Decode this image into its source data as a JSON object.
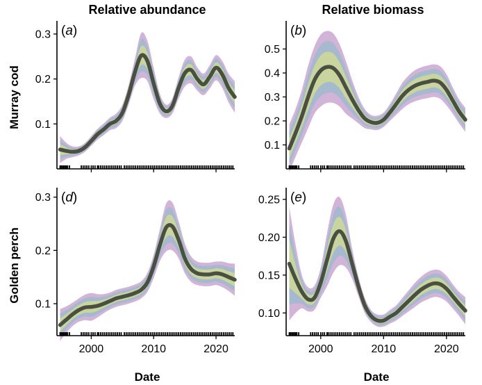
{
  "figure": {
    "columns": [
      "Relative abundance",
      "Relative biomass"
    ],
    "rows": [
      "Murray cod",
      "Golden perch"
    ],
    "x_axis_label": "Date",
    "colors": {
      "outer_band": "#d2b4d9",
      "mid_band": "#a6b9cf",
      "inner_band": "#c9d49f",
      "fit_line": "#4a5041",
      "rug": "#000000"
    }
  },
  "chart_data": [
    {
      "type": "line",
      "panel": "(a)",
      "panel_letter": "a",
      "column": "Relative abundance",
      "row": "Murray cod",
      "xlim": [
        1994.5,
        2023
      ],
      "ylim": [
        0.0,
        0.32
      ],
      "xticks": [
        2000,
        2010,
        2020
      ],
      "yticks": [
        0.1,
        0.2,
        0.3
      ],
      "ytick_labels": [
        "0.1",
        "0.2",
        "0.3"
      ],
      "xticks_labeled": false,
      "x": [
        1995,
        1996,
        1997,
        1998,
        1999,
        2000,
        2001,
        2002,
        2003,
        2004,
        2005,
        2006,
        2007,
        2008,
        2009,
        2010,
        2011,
        2012,
        2013,
        2014,
        2015,
        2016,
        2017,
        2018,
        2019,
        2020,
        2021,
        2022,
        2023
      ],
      "y": [
        0.043,
        0.04,
        0.038,
        0.04,
        0.048,
        0.062,
        0.077,
        0.088,
        0.1,
        0.107,
        0.125,
        0.165,
        0.215,
        0.252,
        0.24,
        0.19,
        0.145,
        0.128,
        0.14,
        0.18,
        0.213,
        0.22,
        0.2,
        0.188,
        0.205,
        0.225,
        0.21,
        0.18,
        0.16
      ],
      "band_outer_halfwidth": [
        0.03,
        0.018,
        0.012,
        0.01,
        0.01,
        0.011,
        0.012,
        0.013,
        0.014,
        0.016,
        0.018,
        0.022,
        0.03,
        0.05,
        0.045,
        0.035,
        0.022,
        0.015,
        0.017,
        0.024,
        0.03,
        0.03,
        0.026,
        0.024,
        0.026,
        0.028,
        0.03,
        0.032,
        0.035
      ]
    },
    {
      "type": "line",
      "panel": "(b)",
      "panel_letter": "b",
      "column": "Relative biomass",
      "row": "Murray cod",
      "xlim": [
        1994.5,
        2023
      ],
      "ylim": [
        0.0,
        0.6
      ],
      "xticks": [
        2000,
        2010,
        2020
      ],
      "yticks": [
        0.1,
        0.2,
        0.3,
        0.4,
        0.5
      ],
      "ytick_labels": [
        "0.1",
        "0.2",
        "0.3",
        "0.4",
        "0.5"
      ],
      "xticks_labeled": false,
      "x": [
        1995,
        1996,
        1997,
        1998,
        1999,
        2000,
        2001,
        2002,
        2003,
        2004,
        2005,
        2006,
        2007,
        2008,
        2009,
        2010,
        2011,
        2012,
        2013,
        2014,
        2015,
        2016,
        2017,
        2018,
        2019,
        2020,
        2021,
        2022,
        2023
      ],
      "y": [
        0.085,
        0.15,
        0.22,
        0.3,
        0.37,
        0.41,
        0.425,
        0.42,
        0.39,
        0.34,
        0.29,
        0.245,
        0.21,
        0.195,
        0.192,
        0.205,
        0.235,
        0.27,
        0.305,
        0.33,
        0.347,
        0.357,
        0.363,
        0.368,
        0.36,
        0.33,
        0.285,
        0.24,
        0.205
      ],
      "band_outer_halfwidth": [
        0.1,
        0.1,
        0.11,
        0.13,
        0.14,
        0.15,
        0.15,
        0.145,
        0.13,
        0.11,
        0.08,
        0.055,
        0.04,
        0.03,
        0.03,
        0.03,
        0.035,
        0.045,
        0.055,
        0.06,
        0.065,
        0.067,
        0.068,
        0.068,
        0.068,
        0.065,
        0.055,
        0.05,
        0.05
      ]
    },
    {
      "type": "line",
      "panel": "(d)",
      "panel_letter": "d",
      "column": "Relative abundance",
      "row": "Golden perch",
      "xlim": [
        1994.5,
        2023
      ],
      "ylim": [
        0.04,
        0.31
      ],
      "xticks": [
        2000,
        2010,
        2020
      ],
      "yticks": [
        0.1,
        0.2,
        0.3
      ],
      "ytick_labels": [
        "0.1",
        "0.2",
        "0.3"
      ],
      "xticks_labeled": true,
      "xtick_labels": [
        "2000",
        "2010",
        "2020"
      ],
      "x": [
        1995,
        1996,
        1997,
        1998,
        1999,
        2000,
        2001,
        2002,
        2003,
        2004,
        2005,
        2006,
        2007,
        2008,
        2009,
        2010,
        2011,
        2012,
        2013,
        2014,
        2015,
        2016,
        2017,
        2018,
        2019,
        2020,
        2021,
        2022,
        2023
      ],
      "y": [
        0.06,
        0.07,
        0.08,
        0.088,
        0.093,
        0.094,
        0.096,
        0.1,
        0.105,
        0.11,
        0.113,
        0.116,
        0.12,
        0.126,
        0.14,
        0.17,
        0.21,
        0.243,
        0.245,
        0.22,
        0.185,
        0.165,
        0.157,
        0.155,
        0.155,
        0.157,
        0.155,
        0.15,
        0.145
      ],
      "band_outer_halfwidth": [
        0.03,
        0.025,
        0.022,
        0.022,
        0.024,
        0.026,
        0.022,
        0.018,
        0.016,
        0.016,
        0.016,
        0.016,
        0.016,
        0.016,
        0.018,
        0.022,
        0.03,
        0.045,
        0.045,
        0.035,
        0.028,
        0.024,
        0.022,
        0.022,
        0.022,
        0.022,
        0.024,
        0.026,
        0.03
      ]
    },
    {
      "type": "line",
      "panel": "(e)",
      "panel_letter": "e",
      "column": "Relative biomass",
      "row": "Golden perch",
      "xlim": [
        1994.5,
        2023
      ],
      "ylim": [
        0.07,
        0.26
      ],
      "xticks": [
        2000,
        2010,
        2020
      ],
      "yticks": [
        0.1,
        0.15,
        0.2,
        0.25
      ],
      "ytick_labels": [
        "0.10",
        "0.15",
        "0.20",
        "0.25"
      ],
      "xticks_labeled": true,
      "xtick_labels": [
        "2000",
        "2010",
        "2020"
      ],
      "x": [
        1995,
        1996,
        1997,
        1998,
        1999,
        2000,
        2001,
        2002,
        2003,
        2004,
        2005,
        2006,
        2007,
        2008,
        2009,
        2010,
        2011,
        2012,
        2013,
        2014,
        2015,
        2016,
        2017,
        2018,
        2019,
        2020,
        2021,
        2022,
        2023
      ],
      "y": [
        0.165,
        0.145,
        0.128,
        0.118,
        0.12,
        0.14,
        0.17,
        0.198,
        0.208,
        0.195,
        0.165,
        0.135,
        0.11,
        0.096,
        0.09,
        0.09,
        0.095,
        0.1,
        0.108,
        0.116,
        0.124,
        0.131,
        0.136,
        0.139,
        0.138,
        0.132,
        0.122,
        0.112,
        0.103
      ],
      "band_outer_halfwidth": [
        0.075,
        0.045,
        0.022,
        0.016,
        0.016,
        0.02,
        0.035,
        0.045,
        0.045,
        0.035,
        0.02,
        0.013,
        0.01,
        0.008,
        0.008,
        0.008,
        0.009,
        0.01,
        0.012,
        0.014,
        0.016,
        0.017,
        0.018,
        0.018,
        0.018,
        0.017,
        0.016,
        0.016,
        0.018
      ]
    }
  ],
  "rug_dates": [
    1995.0,
    1995.2,
    1995.4,
    1995.6,
    1995.8,
    1996.0,
    1996.2,
    1996.5,
    1998.4,
    1998.7,
    1999.0,
    1999.3,
    1999.6,
    2000.0,
    2000.3,
    2000.6,
    2001.0,
    2001.2,
    2001.5,
    2001.8,
    2002.1,
    2002.4,
    2002.7,
    2003.0,
    2003.3,
    2003.6,
    2003.9,
    2004.2,
    2004.5,
    2004.8,
    2005.3,
    2005.6,
    2005.9,
    2006.2,
    2006.5,
    2006.8,
    2007.1,
    2007.4,
    2007.7,
    2008.0,
    2008.3,
    2008.6,
    2008.9,
    2009.2,
    2009.5,
    2009.8,
    2010.1,
    2010.4,
    2010.7,
    2011.0,
    2011.3,
    2011.6,
    2011.9,
    2012.2,
    2012.5,
    2012.8,
    2013.1,
    2013.4,
    2013.7,
    2014.0,
    2014.3,
    2014.6,
    2014.9,
    2015.2,
    2015.5,
    2015.8,
    2016.1,
    2016.4,
    2016.7,
    2017.0,
    2017.3,
    2017.6,
    2017.9,
    2018.2,
    2018.5,
    2018.8,
    2019.1,
    2019.4,
    2019.7,
    2020.0,
    2020.3,
    2020.6,
    2020.9,
    2021.2,
    2021.5,
    2021.8,
    2022.1,
    2022.4,
    2022.7
  ]
}
